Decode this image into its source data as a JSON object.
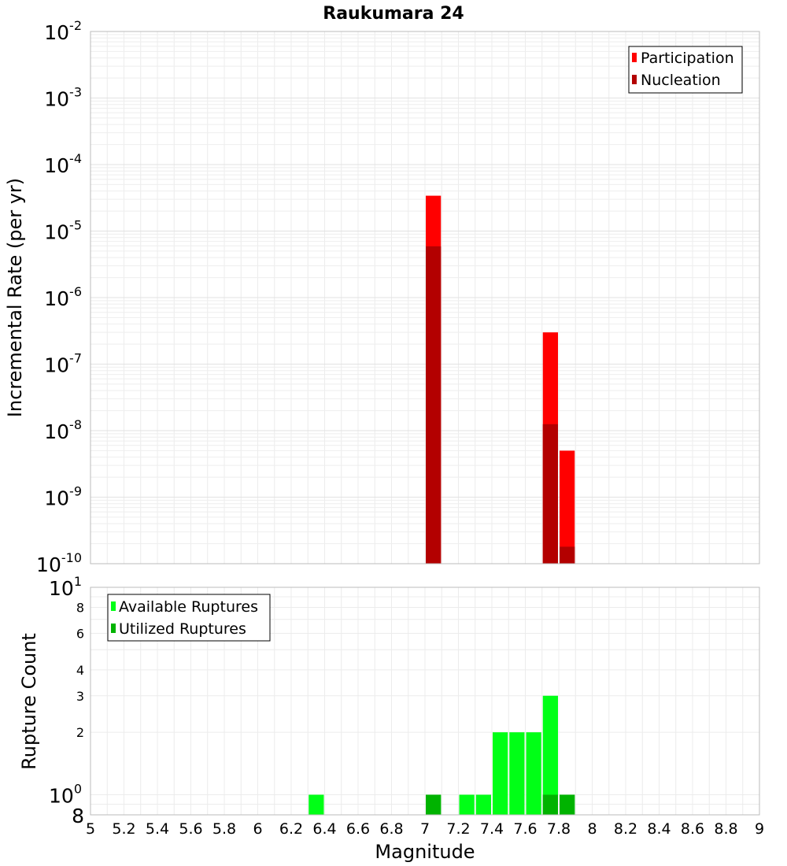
{
  "chart_data": [
    {
      "type": "bar",
      "title": "Raukumara 24",
      "ylabel": "Incremental Rate (per yr)",
      "xlabel": "",
      "yscale": "log",
      "ylim": [
        1e-10,
        0.01
      ],
      "xlim": [
        5,
        9
      ],
      "grid": true,
      "legend_position": "top-right",
      "ytick_exponents": [
        "-10",
        "-9",
        "-8",
        "-7",
        "-6",
        "-5",
        "-4",
        "-3",
        "-2"
      ],
      "ytick_base": "10",
      "bin_width": 0.1,
      "series": [
        {
          "name": "Participation",
          "color": "#ff0000",
          "points": [
            {
              "x": 7.05,
              "y": 3.4e-05
            },
            {
              "x": 7.75,
              "y": 3e-07
            },
            {
              "x": 7.85,
              "y": 5e-09
            }
          ]
        },
        {
          "name": "Nucleation",
          "color": "#b30000",
          "points": [
            {
              "x": 7.05,
              "y": 5.9e-06
            },
            {
              "x": 7.75,
              "y": 1.25e-08
            },
            {
              "x": 7.85,
              "y": 1.8e-10
            }
          ]
        }
      ]
    },
    {
      "type": "bar",
      "title": "",
      "ylabel": "Rupture Count",
      "xlabel": "Magnitude",
      "yscale": "log",
      "ylim": [
        0.8,
        10
      ],
      "xlim": [
        5,
        9
      ],
      "grid": true,
      "legend_position": "top-left",
      "bin_width": 0.1,
      "xticks": [
        "5",
        "5.2",
        "5.4",
        "5.6",
        "5.8",
        "6",
        "6.2",
        "6.4",
        "6.6",
        "6.8",
        "7",
        "7.2",
        "7.4",
        "7.6",
        "7.8",
        "8",
        "8.2",
        "8.4",
        "8.6",
        "8.8",
        "9"
      ],
      "ytick_major": [
        {
          "base": "10",
          "exp": "0",
          "value": 1
        },
        {
          "base": "10",
          "exp": "1",
          "value": 10
        }
      ],
      "ytick_minor": [
        {
          "label": "2",
          "value": 2
        },
        {
          "label": "3",
          "value": 3
        },
        {
          "label": "4",
          "value": 4
        },
        {
          "label": "6",
          "value": 6
        },
        {
          "label": "8",
          "value": 8
        },
        {
          "label": "8",
          "value": 0.8
        }
      ],
      "series": [
        {
          "name": "Available Ruptures",
          "color": "#00ff16",
          "points": [
            {
              "x": 6.35,
              "y": 1
            },
            {
              "x": 7.05,
              "y": 1
            },
            {
              "x": 7.25,
              "y": 1
            },
            {
              "x": 7.35,
              "y": 1
            },
            {
              "x": 7.45,
              "y": 2
            },
            {
              "x": 7.55,
              "y": 2
            },
            {
              "x": 7.65,
              "y": 2
            },
            {
              "x": 7.75,
              "y": 3
            },
            {
              "x": 7.85,
              "y": 1
            }
          ]
        },
        {
          "name": "Utilized Ruptures",
          "color": "#00b300",
          "points": [
            {
              "x": 7.05,
              "y": 1
            },
            {
              "x": 7.75,
              "y": 1
            },
            {
              "x": 7.85,
              "y": 1
            }
          ]
        }
      ]
    }
  ]
}
